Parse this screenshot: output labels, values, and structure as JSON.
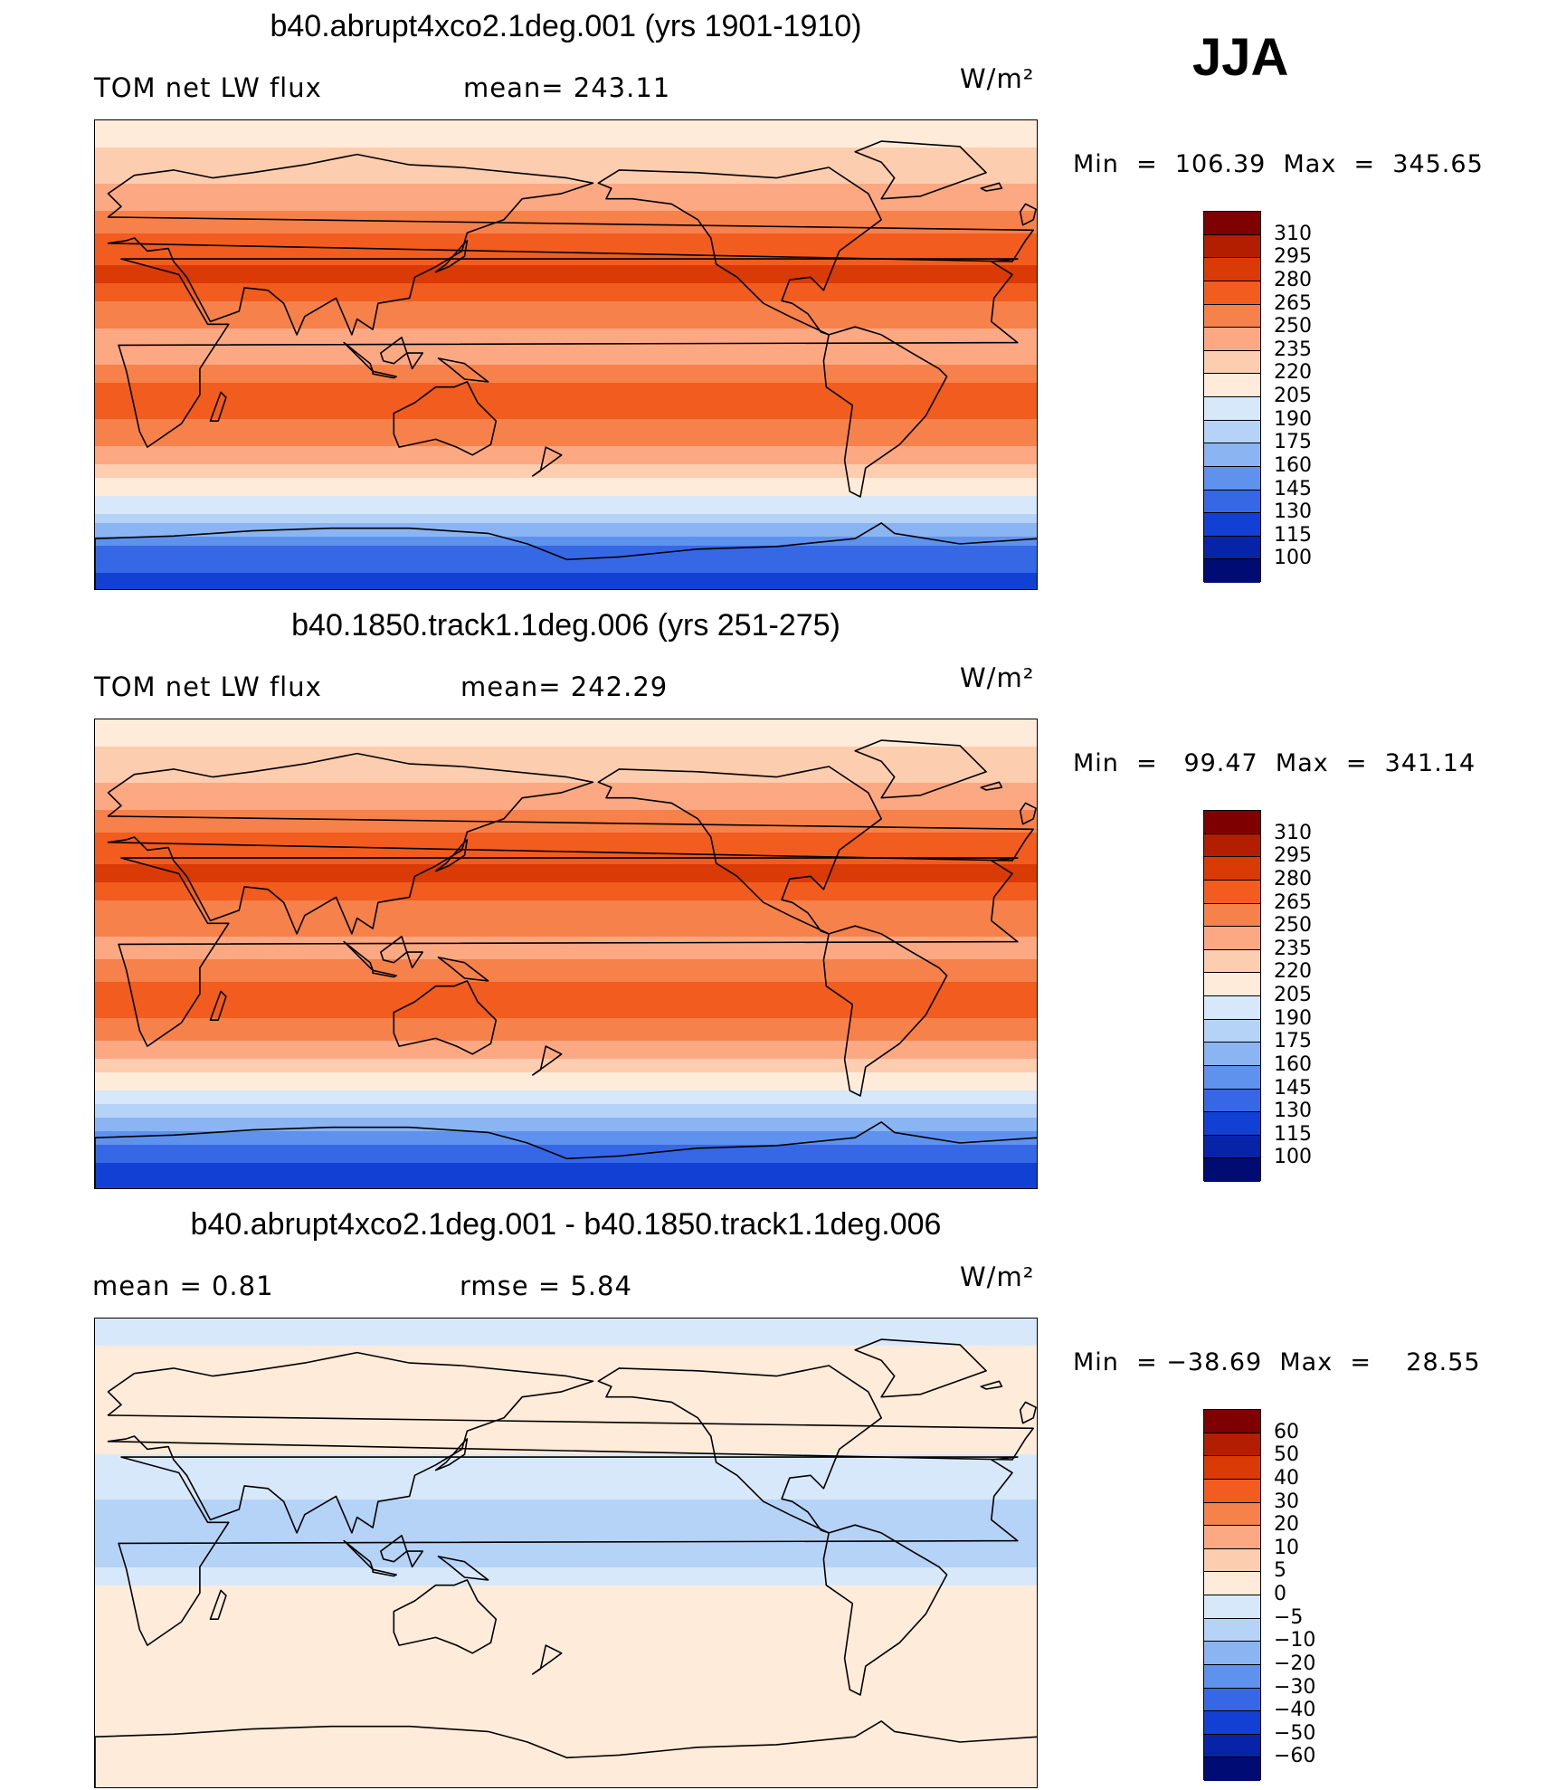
{
  "season": "JJA",
  "units": "W/m²",
  "panels": [
    {
      "title": "b40.abrupt4xco2.1deg.001 (yrs 1901-1910)",
      "left_label": "TOM net LW flux",
      "mid_label": "mean=  243.11",
      "minmax": "Min  =  106.39  Max  =  345.65",
      "kind": "absolute"
    },
    {
      "title": "b40.1850.track1.1deg.006 (yrs 251-275)",
      "left_label": "TOM net LW flux",
      "mid_label": "mean=  242.29",
      "minmax": "Min  =   99.47  Max  =  341.14",
      "kind": "absolute"
    },
    {
      "title": "b40.abrupt4xco2.1deg.001 - b40.1850.track1.1deg.006",
      "left_label": "mean  =     0.81",
      "mid_label": "rmse  =     5.84",
      "minmax": "Min  = −38.69  Max  =    28.55",
      "kind": "difference"
    }
  ],
  "chart_data": [
    {
      "type": "heatmap",
      "title": "b40.abrupt4xco2.1deg.001 (yrs 1901-1910)",
      "variable": "TOM net LW flux",
      "mean": 243.11,
      "min": 106.39,
      "max": 345.65,
      "units": "W/m²",
      "colorbar_levels": [
        "310",
        "295",
        "280",
        "265",
        "250",
        "235",
        "220",
        "205",
        "190",
        "175",
        "160",
        "145",
        "130",
        "115",
        "100"
      ],
      "zonal_profile": {
        "lat": [
          90,
          75,
          60,
          45,
          30,
          15,
          0,
          -15,
          -30,
          -45,
          -60,
          -75,
          -90
        ],
        "value": [
          205,
          225,
          240,
          270,
          285,
          255,
          240,
          275,
          260,
          225,
          190,
          140,
          120
        ]
      }
    },
    {
      "type": "heatmap",
      "title": "b40.1850.track1.1deg.006 (yrs 251-275)",
      "variable": "TOM net LW flux",
      "mean": 242.29,
      "min": 99.47,
      "max": 341.14,
      "units": "W/m²",
      "colorbar_levels": [
        "310",
        "295",
        "280",
        "265",
        "250",
        "235",
        "220",
        "205",
        "190",
        "175",
        "160",
        "145",
        "130",
        "115",
        "100"
      ],
      "zonal_profile": {
        "lat": [
          90,
          75,
          60,
          45,
          30,
          15,
          0,
          -15,
          -30,
          -45,
          -60,
          -75,
          -90
        ],
        "value": [
          205,
          225,
          240,
          268,
          285,
          255,
          245,
          275,
          258,
          222,
          185,
          135,
          115
        ]
      }
    },
    {
      "type": "heatmap",
      "title": "b40.abrupt4xco2.1deg.001 - b40.1850.track1.1deg.006",
      "mean": 0.81,
      "rmse": 5.84,
      "min": -38.69,
      "max": 28.55,
      "units": "W/m²",
      "colorbar_levels": [
        "60",
        "50",
        "40",
        "30",
        "20",
        "10",
        "5",
        "0",
        "−5",
        "−10",
        "−20",
        "−30",
        "−40",
        "−50",
        "−60"
      ],
      "zonal_profile": {
        "lat": [
          90,
          75,
          60,
          45,
          30,
          15,
          0,
          -15,
          -30,
          -45,
          -60,
          -75,
          -90
        ],
        "value": [
          -2,
          1,
          2,
          3,
          -3,
          -6,
          -8,
          2,
          3,
          2,
          1,
          3,
          1
        ]
      }
    }
  ]
}
